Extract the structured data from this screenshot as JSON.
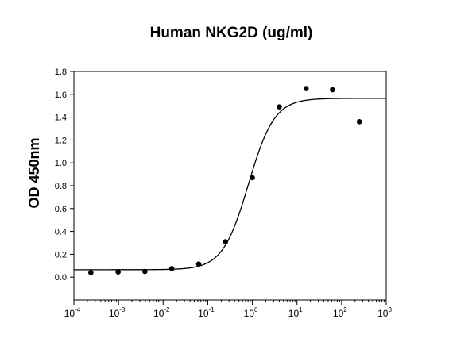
{
  "chart_data": {
    "type": "scatter",
    "title": "Human NKG2D (ug/ml)",
    "xlabel": "",
    "ylabel": "OD 450nm",
    "xscale": "log",
    "xlim": [
      0.0001,
      1000
    ],
    "ylim": [
      -0.2,
      1.8
    ],
    "grid": false,
    "x_ticks": [
      {
        "base": "10",
        "exp": "-4",
        "value": 0.0001
      },
      {
        "base": "10",
        "exp": "-3",
        "value": 0.001
      },
      {
        "base": "10",
        "exp": "-2",
        "value": 0.01
      },
      {
        "base": "10",
        "exp": "-1",
        "value": 0.1
      },
      {
        "base": "10",
        "exp": "0",
        "value": 1
      },
      {
        "base": "10",
        "exp": "1",
        "value": 10
      },
      {
        "base": "10",
        "exp": "2",
        "value": 100
      },
      {
        "base": "10",
        "exp": "3",
        "value": 1000
      }
    ],
    "y_ticks": [
      "0.0",
      "0.2",
      "0.4",
      "0.6",
      "0.8",
      "1.0",
      "1.2",
      "1.4",
      "1.6",
      "1.8"
    ],
    "series": [
      {
        "type": "scatter",
        "x": [
          0.00024,
          0.00098,
          0.0039,
          0.0156,
          0.0625,
          0.25,
          1.0,
          4.0,
          16.0,
          62.5,
          250
        ],
        "y": [
          0.04,
          0.045,
          0.05,
          0.075,
          0.115,
          0.31,
          0.87,
          1.49,
          1.65,
          1.64,
          1.36
        ]
      },
      {
        "type": "line",
        "fit": "4PL",
        "bottom": 0.065,
        "top": 1.565,
        "ec50": 0.82,
        "hill": 1.5
      }
    ],
    "colors": {
      "points": "#000000",
      "curve": "#000000",
      "axes": "#000000"
    }
  }
}
